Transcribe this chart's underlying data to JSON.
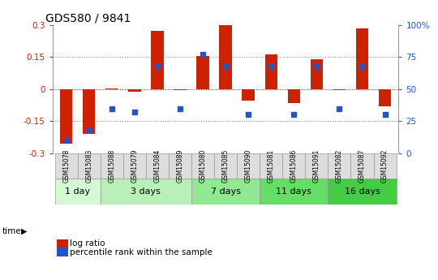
{
  "title": "GDS580 / 9841",
  "samples": [
    "GSM15078",
    "GSM15083",
    "GSM15088",
    "GSM15079",
    "GSM15084",
    "GSM15089",
    "GSM15080",
    "GSM15085",
    "GSM15090",
    "GSM15081",
    "GSM15086",
    "GSM15091",
    "GSM15082",
    "GSM15087",
    "GSM15092"
  ],
  "log_ratio": [
    -0.255,
    -0.21,
    0.005,
    -0.01,
    0.275,
    -0.005,
    0.155,
    0.305,
    -0.055,
    0.165,
    -0.065,
    0.14,
    -0.005,
    0.285,
    -0.08
  ],
  "percentile": [
    10,
    18,
    35,
    32,
    68,
    35,
    77,
    68,
    30,
    68,
    30,
    68,
    35,
    68,
    30
  ],
  "time_groups": [
    {
      "label": "1 day",
      "start": 0,
      "end": 2,
      "color": "#d4f7d4"
    },
    {
      "label": "3 days",
      "start": 2,
      "end": 6,
      "color": "#b8f0b8"
    },
    {
      "label": "7 days",
      "start": 6,
      "end": 9,
      "color": "#90e890"
    },
    {
      "label": "11 days",
      "start": 9,
      "end": 12,
      "color": "#66dd66"
    },
    {
      "label": "16 days",
      "start": 12,
      "end": 15,
      "color": "#44cc44"
    }
  ],
  "ylim_left": [
    -0.3,
    0.3
  ],
  "ylim_right": [
    0,
    100
  ],
  "yticks_left": [
    -0.3,
    -0.15,
    0,
    0.15,
    0.3
  ],
  "ytick_labels_left": [
    "-0.3",
    "-0.15",
    "0",
    "0.15",
    "0.3"
  ],
  "yticks_right": [
    0,
    25,
    50,
    75,
    100
  ],
  "ytick_labels_right": [
    "0",
    "25",
    "50",
    "75",
    "100%"
  ],
  "bar_color": "#cc2200",
  "dot_color": "#2255cc",
  "hline_color": "#cc2200",
  "grid_color": "#888888",
  "bg_color": "#ffffff",
  "axis_bg": "#ffffff",
  "sample_box_color": "#dddddd",
  "legend_items": [
    {
      "label": "log ratio",
      "color": "#cc2200"
    },
    {
      "label": "percentile rank within the sample",
      "color": "#2255cc"
    }
  ]
}
